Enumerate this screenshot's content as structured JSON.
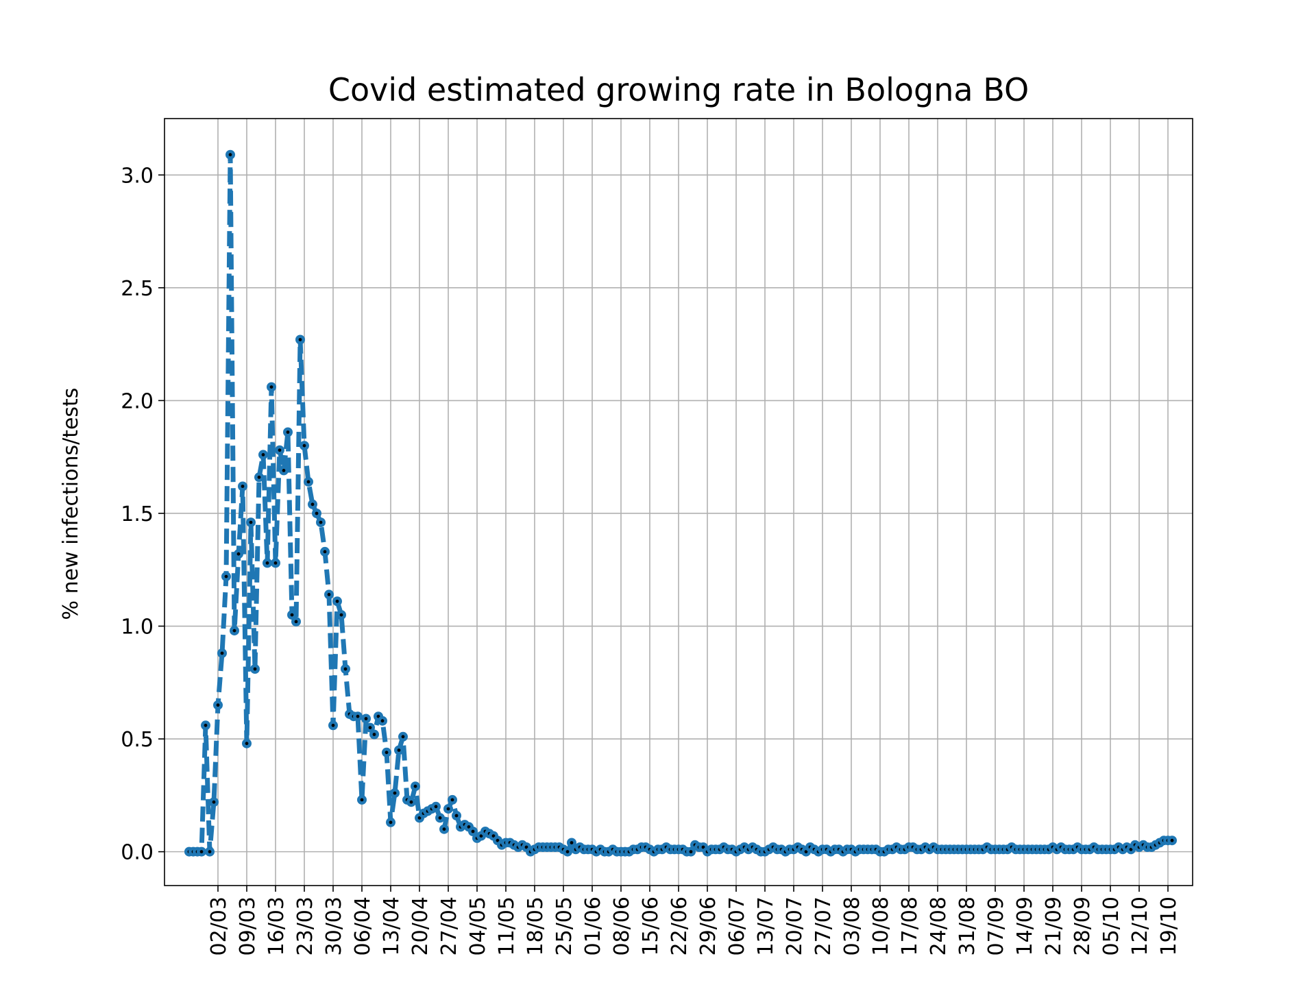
{
  "chart_data": {
    "type": "line",
    "title": "Covid estimated growing rate in Bologna BO",
    "xlabel": "",
    "ylabel": "% new infections/tests",
    "x_start_date": "2020-02-24",
    "x_end_date": "2020-10-19",
    "x_tick_labels": [
      "02/03",
      "09/03",
      "16/03",
      "23/03",
      "30/03",
      "06/04",
      "13/04",
      "20/04",
      "27/04",
      "04/05",
      "11/05",
      "18/05",
      "25/05",
      "01/06",
      "08/06",
      "15/06",
      "22/06",
      "29/06",
      "06/07",
      "13/07",
      "20/07",
      "27/07",
      "03/08",
      "10/08",
      "17/08",
      "24/08",
      "31/08",
      "07/09",
      "14/09",
      "21/09",
      "28/09",
      "05/10",
      "12/10",
      "19/10"
    ],
    "y_ticks": [
      "0.0",
      "0.5",
      "1.0",
      "1.5",
      "2.0",
      "2.5",
      "3.0"
    ],
    "ylim": [
      -0.15,
      3.25
    ],
    "grid": true,
    "line_color": "#1f77b4",
    "marker_color": "#000000",
    "series": [
      {
        "values": [
          0,
          0,
          0,
          0,
          0.56,
          0,
          0.22,
          0.65,
          0.88,
          1.22,
          3.09,
          0.98,
          1.32,
          1.62,
          0.48,
          1.46,
          0.81,
          1.66,
          1.76,
          1.28,
          2.06,
          1.28,
          1.78,
          1.69,
          1.86,
          1.05,
          1.02,
          2.27,
          1.8,
          1.64,
          1.54,
          1.5,
          1.46,
          1.33,
          1.14,
          0.56,
          1.11,
          1.05,
          0.81,
          0.61,
          0.6,
          0.6,
          0.23,
          0.59,
          0.55,
          0.52,
          0.6,
          0.58,
          0.44,
          0.13,
          0.26,
          0.45,
          0.51,
          0.23,
          0.22,
          0.29,
          0.15,
          0.17,
          0.18,
          0.19,
          0.2,
          0.15,
          0.1,
          0.19,
          0.23,
          0.16,
          0.11,
          0.12,
          0.11,
          0.09,
          0.06,
          0.07,
          0.09,
          0.08,
          0.07,
          0.05,
          0.03,
          0.04,
          0.04,
          0.03,
          0.02,
          0.03,
          0.02,
          0,
          0.01,
          0.02,
          0.02,
          0.02,
          0.02,
          0.02,
          0.02,
          0.01,
          0,
          0.04,
          0.01,
          0.02,
          0.01,
          0.01,
          0.01,
          0,
          0.01,
          0,
          0,
          0.01,
          0,
          0,
          0,
          0,
          0.01,
          0.01,
          0.02,
          0.02,
          0.01,
          0,
          0.01,
          0.01,
          0.02,
          0.01,
          0.01,
          0.01,
          0.01,
          0,
          0,
          0.03,
          0.02,
          0.02,
          0,
          0.01,
          0.01,
          0.01,
          0.02,
          0.01,
          0.01,
          0,
          0.01,
          0.02,
          0.01,
          0.02,
          0.01,
          0,
          0,
          0.01,
          0.02,
          0.01,
          0.01,
          0,
          0.01,
          0.01,
          0.02,
          0.01,
          0,
          0.02,
          0.01,
          0,
          0.01,
          0.01,
          0,
          0.01,
          0.01,
          0,
          0.01,
          0.01,
          0,
          0.01,
          0.01,
          0.01,
          0.01,
          0.01,
          0,
          0,
          0.01,
          0.01,
          0.02,
          0.01,
          0.01,
          0.02,
          0.02,
          0.01,
          0.01,
          0.02,
          0.01,
          0.02,
          0.01,
          0.01,
          0.01,
          0.01,
          0.01,
          0.01,
          0.01,
          0.01,
          0.01,
          0.01,
          0.01,
          0.01,
          0.02,
          0.01,
          0.01,
          0.01,
          0.01,
          0.01,
          0.02,
          0.01,
          0.01,
          0.01,
          0.01,
          0.01,
          0.01,
          0.01,
          0.01,
          0.01,
          0.02,
          0.01,
          0.02,
          0.01,
          0.01,
          0.01,
          0.02,
          0.01,
          0.01,
          0.01,
          0.02,
          0.01,
          0.01,
          0.01,
          0.01,
          0.01,
          0.02,
          0.01,
          0.02,
          0.01,
          0.03,
          0.02,
          0.03,
          0.02,
          0.02,
          0.03,
          0.04,
          0.05,
          0.05,
          0.05
        ]
      }
    ]
  }
}
